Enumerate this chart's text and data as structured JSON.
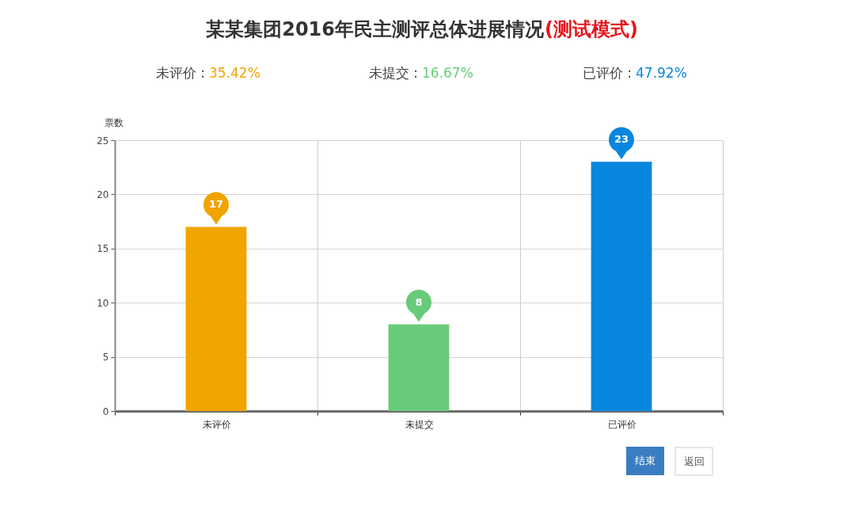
{
  "chart_data": {
    "type": "bar",
    "title": "某某集团2016年民主测评总体进展情况",
    "annotations": [
      "(测试模式)",
      "未评价 :",
      "35.42%",
      "未提交 :",
      "16.67%",
      "已评价 :",
      "47.92%",
      "结束",
      "返回"
    ],
    "ylabel": "票数",
    "categories": [
      "未评价",
      "未提交",
      "已评价"
    ],
    "values": [
      17,
      8,
      23
    ],
    "colors": [
      "#f0a400",
      "#68cb79",
      "#0887de"
    ],
    "ylim": [
      0,
      25
    ],
    "yticks": [
      0,
      5,
      10,
      15,
      20,
      25
    ],
    "grid": true,
    "data_labels": true
  }
}
